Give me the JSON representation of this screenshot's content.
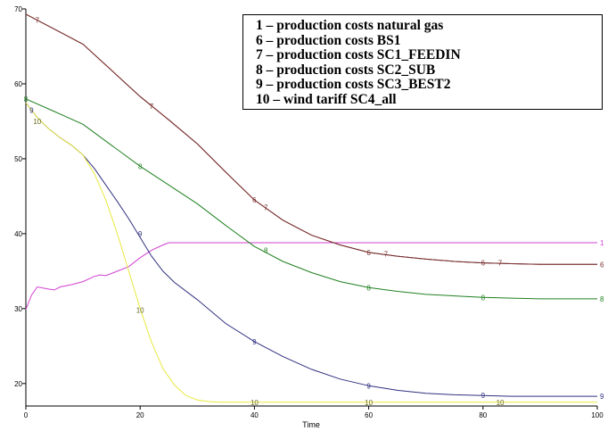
{
  "chart_data": {
    "type": "line",
    "xlabel": "Time",
    "ylabel": "",
    "xlim": [
      0,
      100
    ],
    "ylim": [
      17,
      70
    ],
    "xticks": [
      0,
      20,
      40,
      60,
      80,
      100
    ],
    "yticks": [
      20,
      30,
      40,
      50,
      60,
      70
    ],
    "grid": false,
    "legend_position": "top-right",
    "legend": [
      "1 – production costs natural gas",
      "6 – production costs BS1",
      "7 – production costs SC1_FEEDIN",
      "8 – production costs SC2_SUB",
      "9 – production  costs SC3_BEST2",
      "10 – wind tariff SC4_all"
    ],
    "series": [
      {
        "id": "1",
        "color": "#d040d0",
        "x": [
          0,
          1,
          2,
          4,
          5,
          6,
          8,
          10,
          12,
          13,
          14,
          16,
          18,
          20,
          22,
          24,
          25,
          26,
          30,
          40,
          60,
          80,
          100
        ],
        "y": [
          29.9,
          31.8,
          32.9,
          32.6,
          32.5,
          32.9,
          33.2,
          33.6,
          34.3,
          34.5,
          34.4,
          35,
          35.6,
          36.8,
          37.8,
          38.5,
          38.8,
          38.8,
          38.8,
          38.8,
          38.8,
          38.8,
          38.8
        ],
        "markers": [
          {
            "x": 100,
            "y": 38.8
          }
        ]
      },
      {
        "id": "6",
        "color": "#7a3030",
        "x": [
          0,
          5,
          10,
          15,
          20,
          25,
          30,
          35,
          40,
          45,
          50,
          55,
          60,
          65,
          70,
          75,
          80,
          85,
          90,
          95,
          100
        ],
        "y": [
          69.3,
          67.3,
          65.3,
          61.8,
          58.3,
          55.2,
          52,
          48.2,
          44.5,
          41.8,
          39.8,
          38.5,
          37.5,
          37,
          36.6,
          36.3,
          36.1,
          36,
          35.9,
          35.9,
          35.9
        ],
        "markers": [
          {
            "x": 40,
            "y": 44.5
          },
          {
            "x": 60,
            "y": 37.5
          },
          {
            "x": 80,
            "y": 36.1
          },
          {
            "x": 100,
            "y": 35.9
          }
        ]
      },
      {
        "id": "7",
        "color": "#7a3030",
        "x": [
          0,
          5,
          10,
          15,
          20,
          25,
          30,
          35,
          40,
          45,
          50,
          55,
          60,
          65,
          70,
          75,
          80,
          85,
          90,
          95,
          100
        ],
        "y": [
          69.3,
          67.3,
          65.3,
          61.8,
          58.3,
          55.2,
          52,
          48.2,
          44.5,
          41.8,
          39.8,
          38.5,
          37.5,
          37,
          36.6,
          36.3,
          36.1,
          36,
          35.9,
          35.9,
          35.9
        ],
        "markers": [
          {
            "x": 2,
            "y": 68.5
          },
          {
            "x": 22,
            "y": 57
          },
          {
            "x": 42,
            "y": 43.5
          },
          {
            "x": 63,
            "y": 37.3
          },
          {
            "x": 83,
            "y": 36.1
          }
        ]
      },
      {
        "id": "8",
        "color": "#208020",
        "x": [
          0,
          5,
          10,
          15,
          20,
          25,
          30,
          35,
          40,
          45,
          50,
          55,
          60,
          65,
          70,
          75,
          80,
          85,
          90,
          95,
          100
        ],
        "y": [
          58,
          56.3,
          54.6,
          51.8,
          49,
          46.5,
          44,
          41.1,
          38.3,
          36.3,
          34.8,
          33.6,
          32.8,
          32.3,
          31.9,
          31.7,
          31.5,
          31.4,
          31.3,
          31.3,
          31.3
        ],
        "markers": [
          {
            "x": 0,
            "y": 58
          },
          {
            "x": 20,
            "y": 49
          },
          {
            "x": 42,
            "y": 37.8
          },
          {
            "x": 60,
            "y": 32.8
          },
          {
            "x": 80,
            "y": 31.5
          },
          {
            "x": 100,
            "y": 31.3
          }
        ]
      },
      {
        "id": "9",
        "color": "#303080",
        "x": [
          0,
          2,
          4,
          6,
          8,
          10,
          12,
          14,
          16,
          18,
          20,
          22,
          24,
          26,
          30,
          35,
          40,
          45,
          50,
          55,
          60,
          65,
          70,
          75,
          80,
          85,
          90,
          95,
          100
        ],
        "y": [
          57.5,
          55.5,
          54,
          52.8,
          51.8,
          50.5,
          48.7,
          46.5,
          44.3,
          42,
          39.5,
          37,
          35,
          33.5,
          31.2,
          28,
          25.6,
          23.6,
          21.9,
          20.6,
          19.7,
          19.1,
          18.7,
          18.5,
          18.4,
          18.3,
          18.3,
          18.3,
          18.3
        ],
        "markers": [
          {
            "x": 1,
            "y": 56.5
          },
          {
            "x": 20,
            "y": 40
          },
          {
            "x": 40,
            "y": 25.6
          },
          {
            "x": 60,
            "y": 19.7
          },
          {
            "x": 80,
            "y": 18.4
          },
          {
            "x": 100,
            "y": 18.3
          }
        ]
      },
      {
        "id": "10",
        "color": "#e8e840",
        "x": [
          0,
          2,
          4,
          6,
          8,
          10,
          12,
          14,
          16,
          18,
          20,
          22,
          24,
          26,
          28,
          30,
          32,
          34,
          36,
          40,
          50,
          60,
          70,
          80,
          90,
          100
        ],
        "y": [
          57.5,
          55.5,
          54,
          52.8,
          51.8,
          50.5,
          48,
          44.5,
          40,
          35,
          30,
          25.5,
          22,
          19.8,
          18.4,
          17.8,
          17.6,
          17.5,
          17.5,
          17.5,
          17.5,
          17.5,
          17.5,
          17.5,
          17.5,
          17.5
        ],
        "markers": [
          {
            "x": 2,
            "y": 55
          },
          {
            "x": 20,
            "y": 29.8
          },
          {
            "x": 40,
            "y": 17.5
          },
          {
            "x": 60,
            "y": 17.5
          },
          {
            "x": 83,
            "y": 17.5
          }
        ]
      }
    ]
  }
}
